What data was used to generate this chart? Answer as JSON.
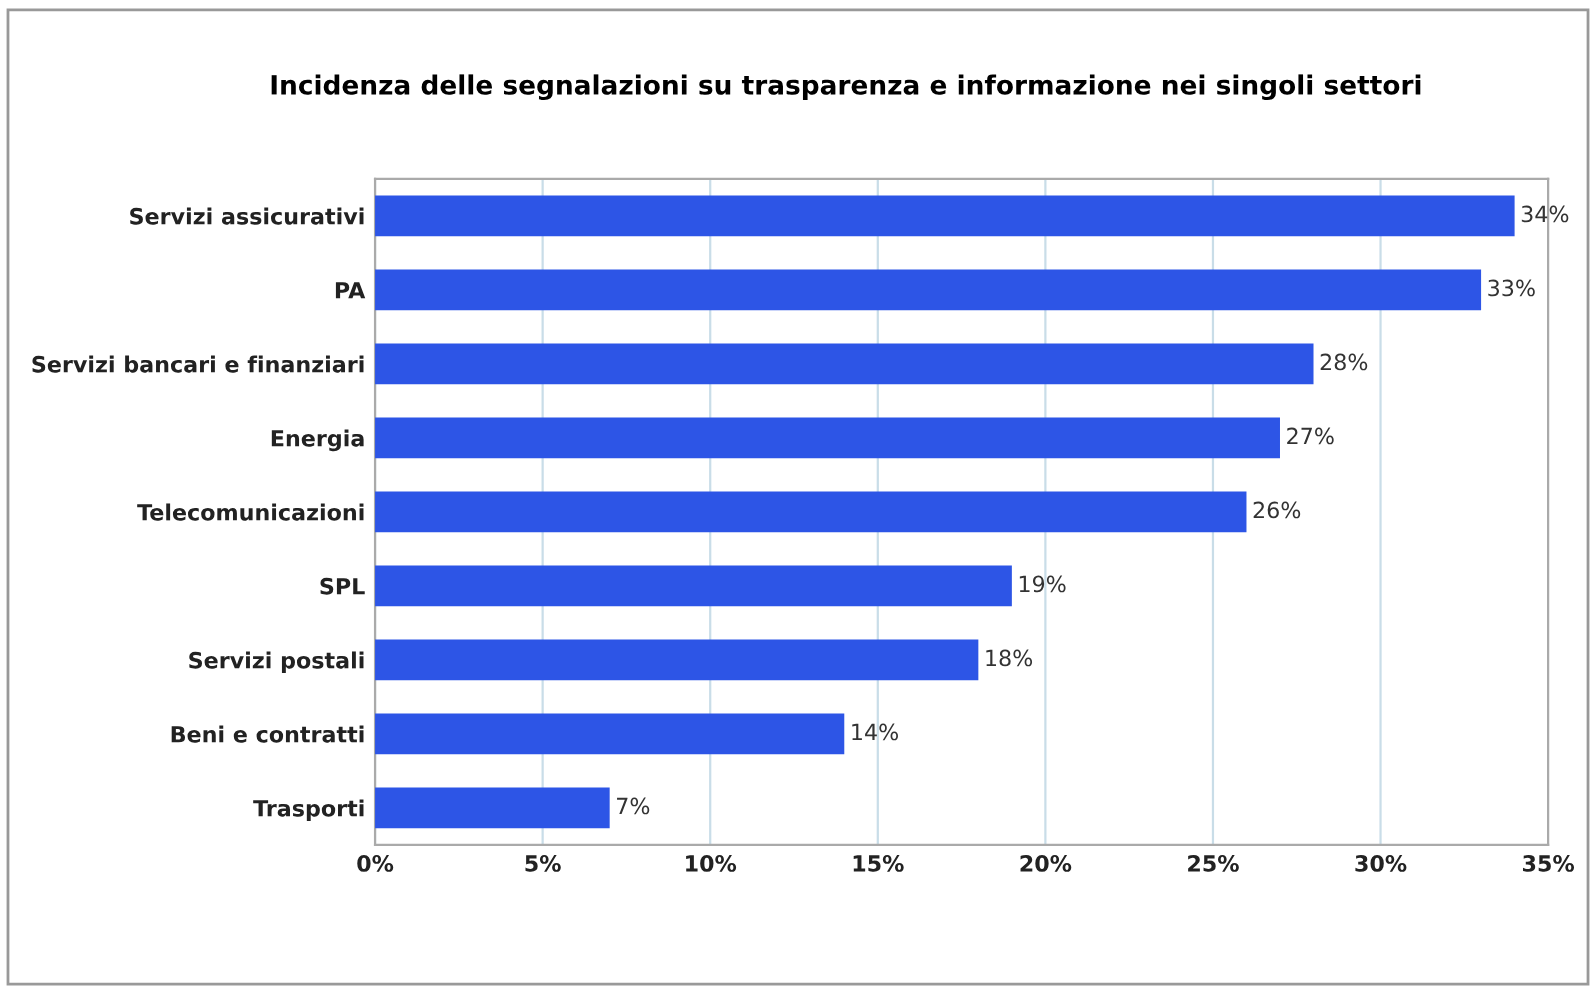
{
  "chart_data": {
    "type": "bar",
    "orientation": "horizontal",
    "title": "Incidenza delle segnalazioni su trasparenza e informazione nei singoli settori",
    "categories": [
      "Servizi assicurativi",
      "PA",
      "Servizi bancari e finanziari",
      "Energia",
      "Telecomunicazioni",
      "SPL",
      "Servizi postali",
      "Beni e contratti",
      "Trasporti"
    ],
    "values": [
      34,
      33,
      28,
      27,
      26,
      19,
      18,
      14,
      7
    ],
    "value_labels": [
      "34%",
      "33%",
      "28%",
      "27%",
      "26%",
      "19%",
      "18%",
      "14%",
      "7%"
    ],
    "color": "#2d55e6",
    "xlim": [
      0,
      35
    ],
    "xticks": [
      {
        "value": 0,
        "label": "0%"
      },
      {
        "value": 5,
        "label": "5%"
      },
      {
        "value": 10,
        "label": "10%"
      },
      {
        "value": 15,
        "label": "15%"
      },
      {
        "value": 20,
        "label": "20%"
      },
      {
        "value": 25,
        "label": "25%"
      },
      {
        "value": 30,
        "label": "30%"
      },
      {
        "value": 35,
        "label": "35%"
      }
    ],
    "grid": "x",
    "legend": false
  }
}
